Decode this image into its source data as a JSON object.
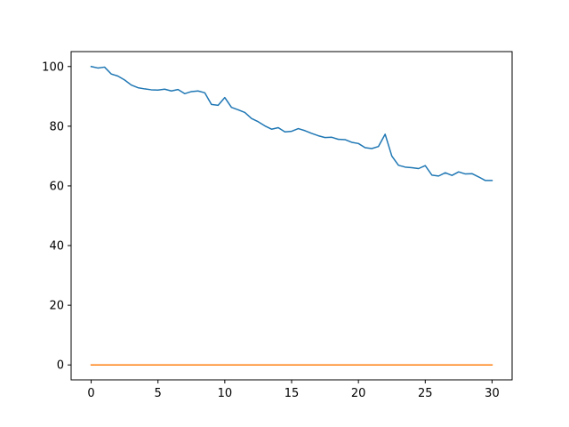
{
  "chart_data": {
    "type": "line",
    "title": "",
    "xlabel": "",
    "ylabel": "",
    "xlim": [
      -1.5,
      31.5
    ],
    "ylim": [
      -5,
      105
    ],
    "xticks": [
      0,
      5,
      10,
      15,
      20,
      25,
      30
    ],
    "xtick_labels": [
      "0",
      "5",
      "10",
      "15",
      "20",
      "25",
      "30"
    ],
    "yticks": [
      0,
      20,
      40,
      60,
      80,
      100
    ],
    "ytick_labels": [
      "0",
      "20",
      "40",
      "60",
      "80",
      "100"
    ],
    "grid": false,
    "legend": "none",
    "series": [
      {
        "color": "#1f77b4",
        "x": [
          0,
          0.5,
          1,
          1.5,
          2,
          2.5,
          3,
          3.5,
          4,
          4.5,
          5,
          5.5,
          6,
          6.5,
          7,
          7.5,
          8,
          8.5,
          9,
          9.5,
          10,
          10.5,
          11,
          11.5,
          12,
          12.5,
          13,
          13.5,
          14,
          14.5,
          15,
          15.5,
          16,
          16.5,
          17,
          17.5,
          18,
          18.5,
          19,
          19.5,
          20,
          20.5,
          21,
          21.5,
          22,
          22.5,
          23,
          23.5,
          24,
          24.5,
          25,
          25.5,
          26,
          26.5,
          27,
          27.5,
          28,
          28.5,
          29,
          29.5,
          30
        ],
        "y": [
          100,
          99.5,
          99.8,
          97.5,
          96.8,
          95.5,
          93.8,
          92.9,
          92.5,
          92.2,
          92.1,
          92.4,
          91.8,
          92.3,
          90.9,
          91.6,
          91.8,
          91.2,
          87.3,
          87.0,
          89.6,
          86.3,
          85.5,
          84.6,
          82.6,
          81.5,
          80.1,
          79.0,
          79.5,
          78.1,
          78.3,
          79.2,
          78.5,
          77.6,
          76.8,
          76.2,
          76.3,
          75.6,
          75.5,
          74.6,
          74.2,
          72.8,
          72.5,
          73.2,
          77.3,
          70.0,
          66.9,
          66.3,
          66.1,
          65.8,
          66.8,
          63.6,
          63.3,
          64.4,
          63.5,
          64.7,
          64.0,
          64.1,
          63.0,
          61.8,
          61.8
        ]
      },
      {
        "color": "#ff7f0e",
        "x": [
          0,
          30
        ],
        "y": [
          0,
          0
        ]
      }
    ]
  }
}
